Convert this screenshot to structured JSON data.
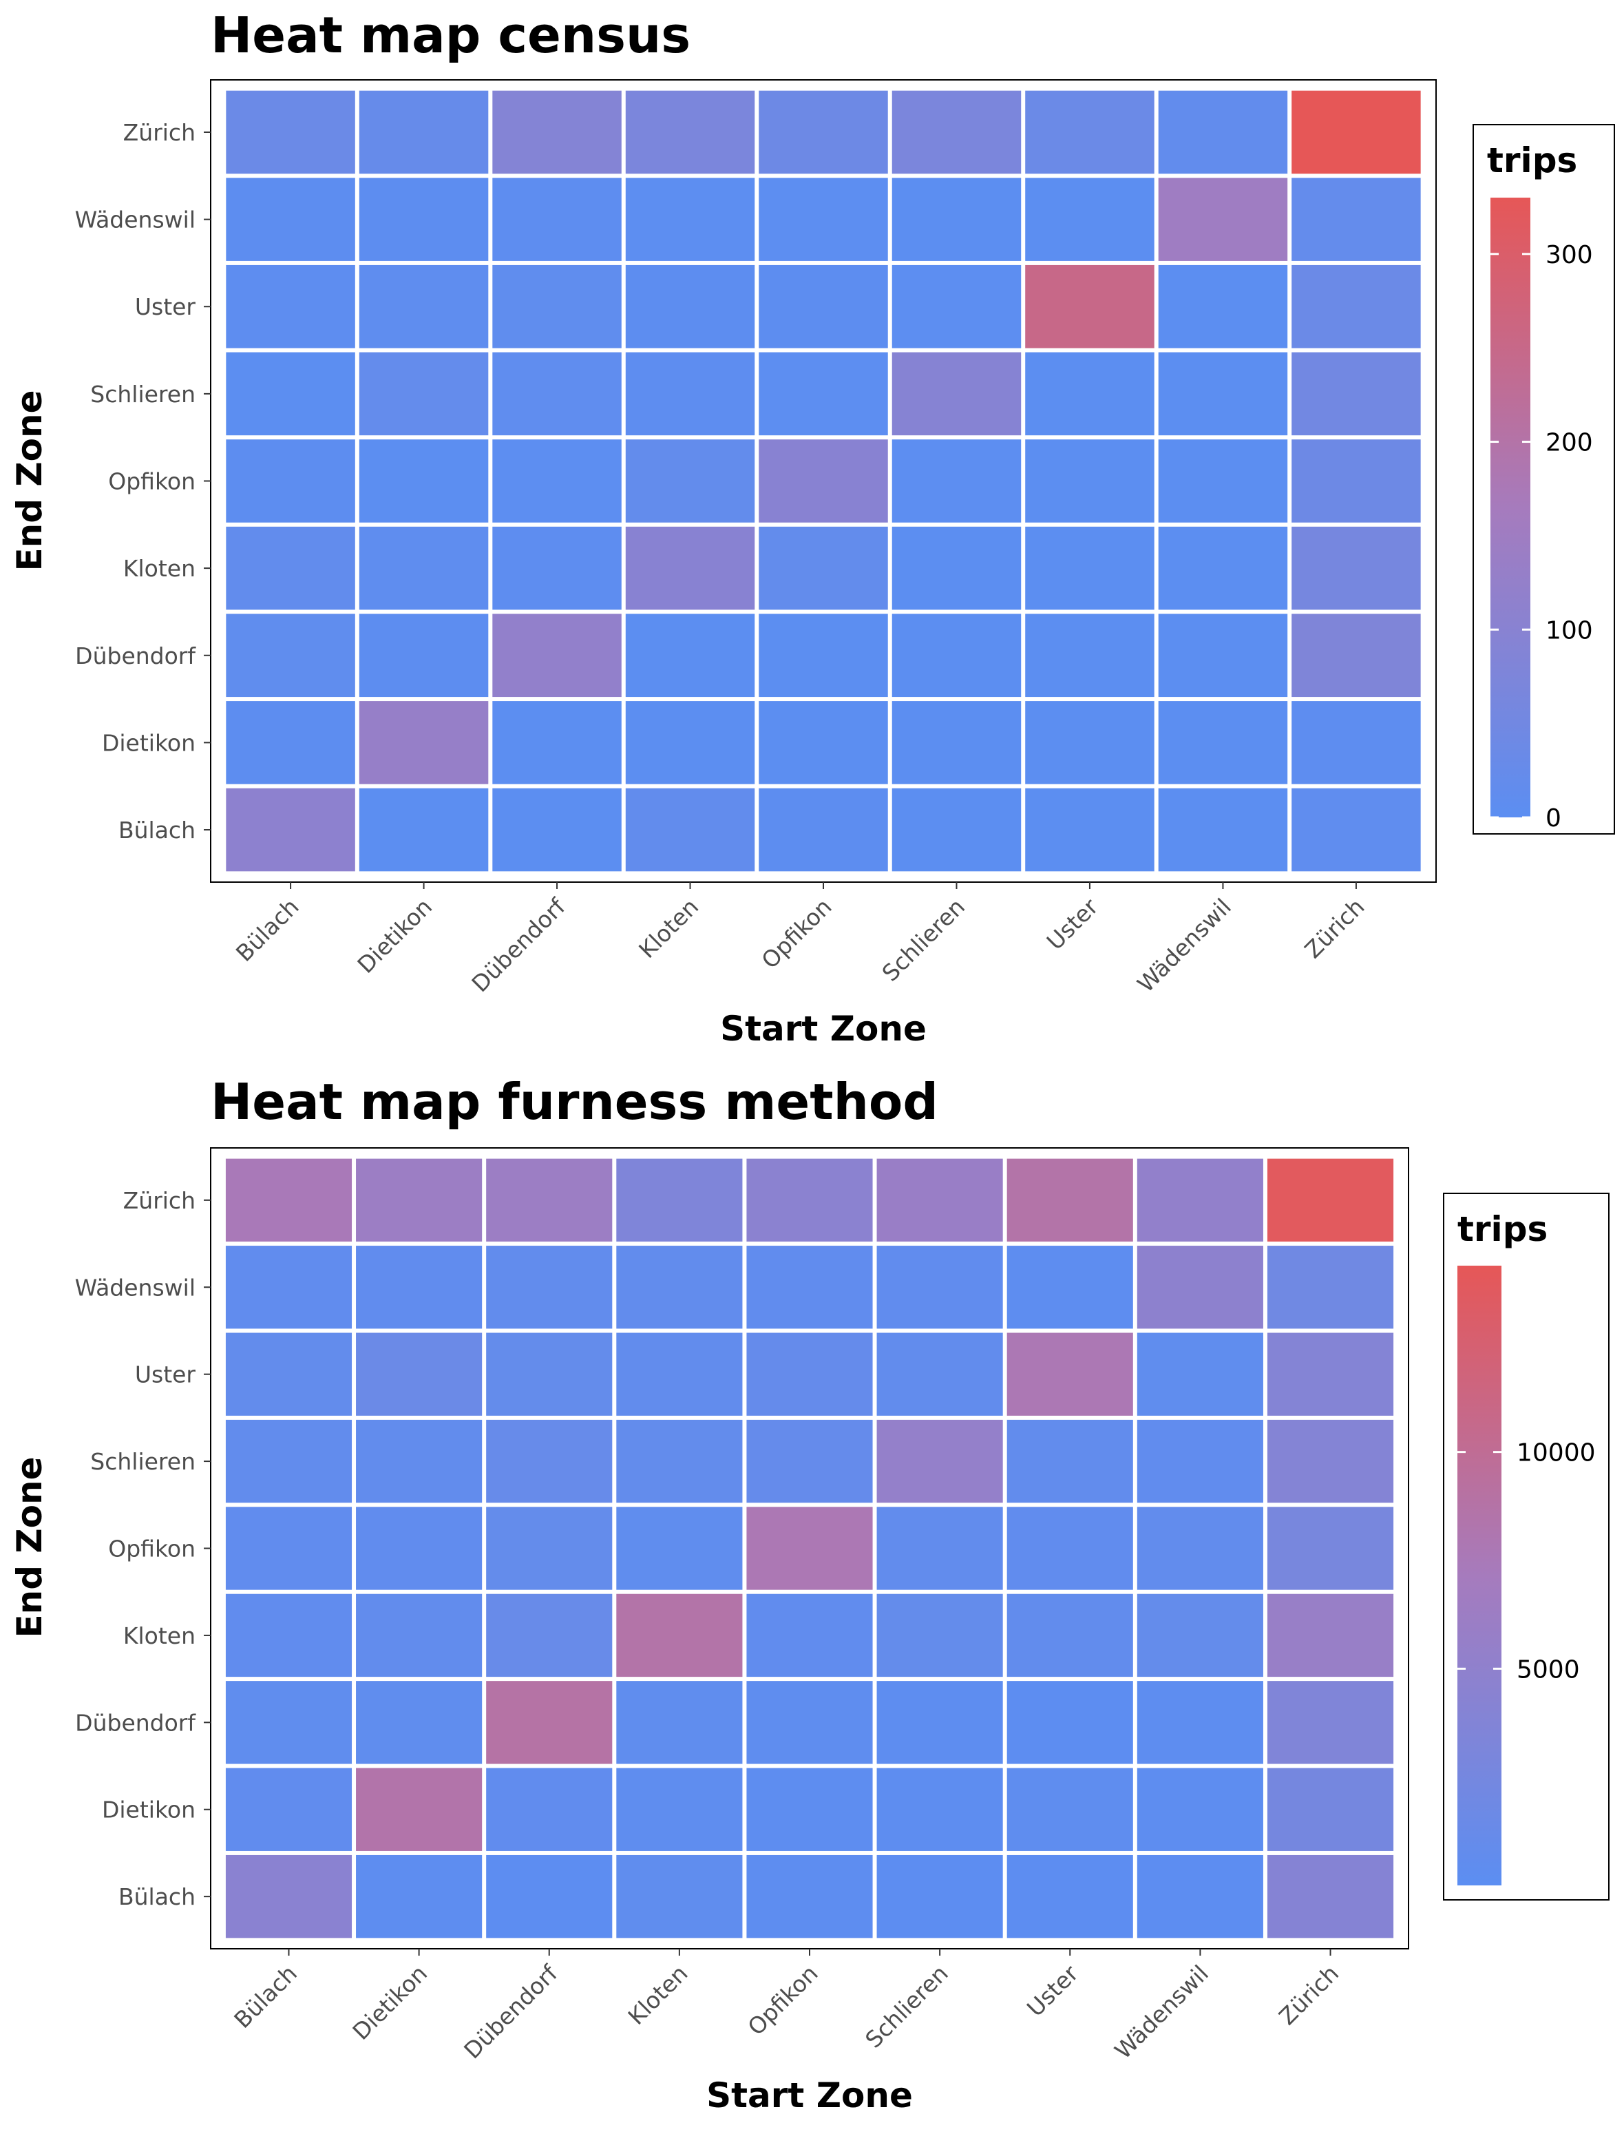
{
  "colors": {
    "low": "#5b8ef2",
    "mid": "#a67bbd",
    "high": "#e65757",
    "tile_border": "#ffffff",
    "panel_border": "#000000"
  },
  "chart_data": [
    {
      "type": "heatmap",
      "title": "Heat map census",
      "xlabel": "Start Zone",
      "ylabel": "End Zone",
      "x": [
        "Bülach",
        "Dietikon",
        "Dübendorf",
        "Kloten",
        "Opfikon",
        "Schlieren",
        "Uster",
        "Wädenswil",
        "Zürich"
      ],
      "y": [
        "Bülach",
        "Dietikon",
        "Dübendorf",
        "Kloten",
        "Opfikon",
        "Schlieren",
        "Uster",
        "Wädenswil",
        "Zürich"
      ],
      "values": [
        [
          110,
          3,
          3,
          15,
          5,
          2,
          2,
          2,
          10
        ],
        [
          5,
          130,
          3,
          3,
          3,
          3,
          2,
          2,
          6
        ],
        [
          12,
          5,
          120,
          3,
          3,
          3,
          2,
          2,
          80
        ],
        [
          15,
          8,
          7,
          100,
          18,
          3,
          2,
          2,
          60
        ],
        [
          5,
          3,
          4,
          18,
          100,
          4,
          3,
          2,
          40
        ],
        [
          3,
          20,
          10,
          6,
          4,
          95,
          3,
          2,
          50
        ],
        [
          7,
          8,
          12,
          5,
          5,
          4,
          250,
          2,
          35
        ],
        [
          5,
          5,
          6,
          4,
          4,
          3,
          2,
          150,
          20
        ],
        [
          35,
          25,
          90,
          70,
          40,
          70,
          35,
          15,
          330
        ]
      ],
      "value_range": [
        0,
        330
      ],
      "legend": {
        "title": "trips",
        "position": "right",
        "ticks": [
          "0",
          "100",
          "200",
          "300"
        ],
        "tick_values": [
          0,
          100,
          200,
          300
        ]
      }
    },
    {
      "type": "heatmap",
      "title": "Heat map furness method",
      "xlabel": "Start Zone",
      "ylabel": "End Zone",
      "x": [
        "Bülach",
        "Dietikon",
        "Dübendorf",
        "Kloten",
        "Opfikon",
        "Schlieren",
        "Uster",
        "Wädenswil",
        "Zürich"
      ],
      "y": [
        "Bülach",
        "Dietikon",
        "Dübendorf",
        "Kloten",
        "Opfikon",
        "Schlieren",
        "Uster",
        "Wädenswil",
        "Zürich"
      ],
      "values": [
        [
          4500,
          300,
          200,
          500,
          300,
          200,
          200,
          200,
          4000
        ],
        [
          600,
          8500,
          600,
          400,
          300,
          300,
          400,
          300,
          2500
        ],
        [
          500,
          500,
          8800,
          500,
          400,
          300,
          200,
          300,
          3500
        ],
        [
          600,
          700,
          1200,
          8600,
          600,
          900,
          700,
          900,
          5800
        ],
        [
          600,
          600,
          900,
          500,
          7800,
          700,
          600,
          700,
          2800
        ],
        [
          700,
          700,
          1100,
          800,
          1000,
          5400,
          700,
          600,
          3900
        ],
        [
          800,
          1500,
          900,
          700,
          1000,
          700,
          7800,
          500,
          3900
        ],
        [
          600,
          600,
          700,
          700,
          600,
          600,
          300,
          4800,
          2000
        ],
        [
          7500,
          6200,
          6200,
          3400,
          4600,
          5900,
          8600,
          5200,
          13800
        ]
      ],
      "value_range": [
        0,
        14300
      ],
      "legend": {
        "title": "trips",
        "position": "right",
        "ticks": [
          "5000",
          "10000"
        ],
        "tick_values": [
          5000,
          10000
        ]
      }
    }
  ]
}
